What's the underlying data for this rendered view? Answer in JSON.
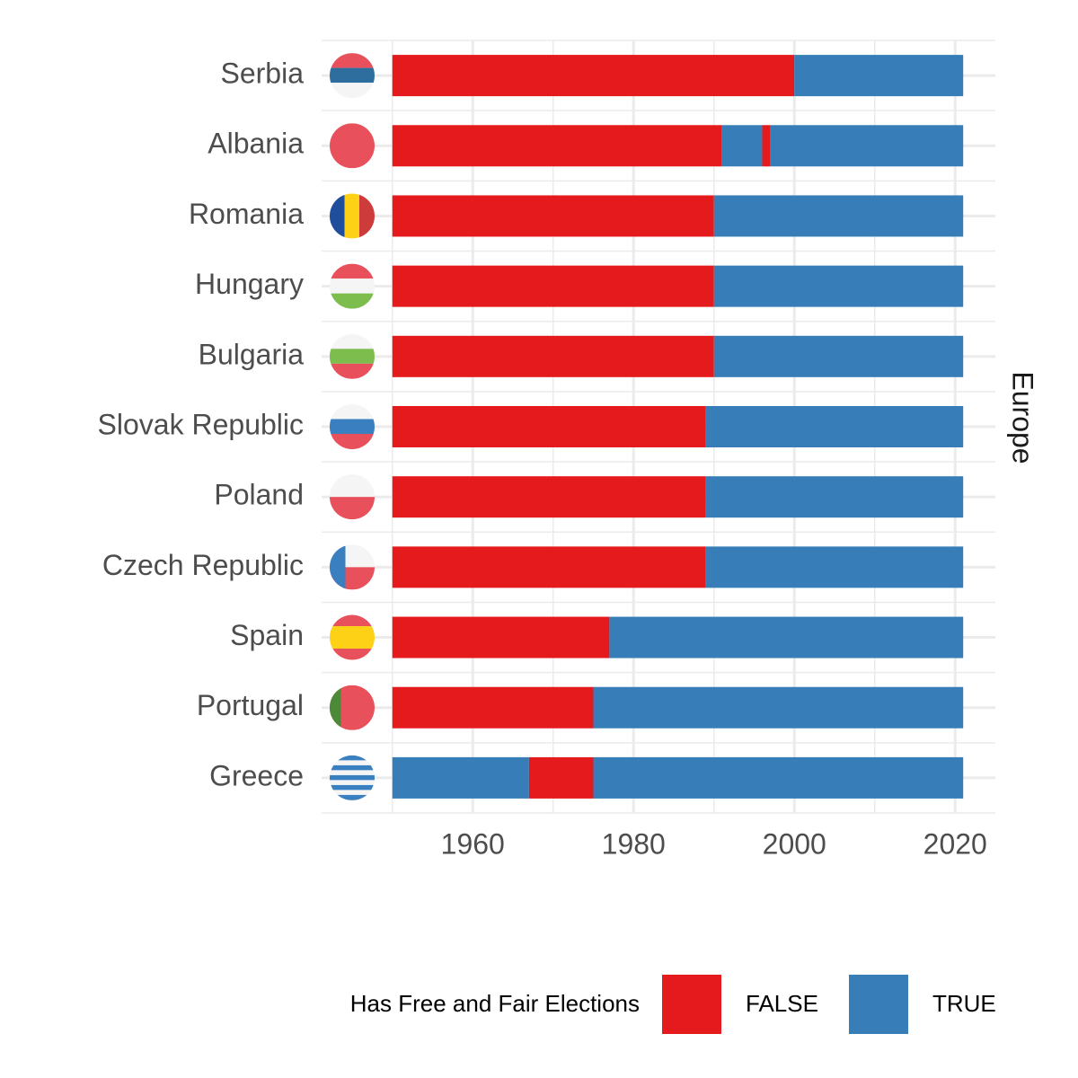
{
  "chart_data": {
    "type": "timeline",
    "facet_label": "Europe",
    "xlim": [
      1941.2,
      2025
    ],
    "xticks": [
      1960,
      1980,
      2000,
      2020
    ],
    "xminor": [
      1950,
      1970,
      1990,
      2010
    ],
    "grid": true,
    "legend": {
      "title": "Has Free and Fair Elections",
      "position": "bottom",
      "series": [
        {
          "name": "FALSE",
          "color": "#e41a1c"
        },
        {
          "name": "TRUE",
          "color": "#377eb8"
        }
      ]
    },
    "bars": [
      {
        "category": "Serbia",
        "segments": [
          {
            "start": 1950,
            "end": 2000,
            "state": "FALSE"
          },
          {
            "start": 2000,
            "end": 2021,
            "state": "TRUE"
          }
        ]
      },
      {
        "category": "Albania",
        "segments": [
          {
            "start": 1950,
            "end": 1991,
            "state": "FALSE"
          },
          {
            "start": 1991,
            "end": 1996,
            "state": "TRUE"
          },
          {
            "start": 1996,
            "end": 1997,
            "state": "FALSE"
          },
          {
            "start": 1997,
            "end": 2021,
            "state": "TRUE"
          }
        ]
      },
      {
        "category": "Romania",
        "segments": [
          {
            "start": 1950,
            "end": 1990,
            "state": "FALSE"
          },
          {
            "start": 1990,
            "end": 2021,
            "state": "TRUE"
          }
        ]
      },
      {
        "category": "Hungary",
        "segments": [
          {
            "start": 1950,
            "end": 1990,
            "state": "FALSE"
          },
          {
            "start": 1990,
            "end": 2021,
            "state": "TRUE"
          }
        ]
      },
      {
        "category": "Bulgaria",
        "segments": [
          {
            "start": 1950,
            "end": 1990,
            "state": "FALSE"
          },
          {
            "start": 1990,
            "end": 2021,
            "state": "TRUE"
          }
        ]
      },
      {
        "category": "Slovak Republic",
        "segments": [
          {
            "start": 1950,
            "end": 1989,
            "state": "FALSE"
          },
          {
            "start": 1989,
            "end": 2021,
            "state": "TRUE"
          }
        ]
      },
      {
        "category": "Poland",
        "segments": [
          {
            "start": 1950,
            "end": 1989,
            "state": "FALSE"
          },
          {
            "start": 1989,
            "end": 2021,
            "state": "TRUE"
          }
        ]
      },
      {
        "category": "Czech Republic",
        "segments": [
          {
            "start": 1950,
            "end": 1989,
            "state": "FALSE"
          },
          {
            "start": 1989,
            "end": 2021,
            "state": "TRUE"
          }
        ]
      },
      {
        "category": "Spain",
        "segments": [
          {
            "start": 1950,
            "end": 1977,
            "state": "FALSE"
          },
          {
            "start": 1977,
            "end": 2021,
            "state": "TRUE"
          }
        ]
      },
      {
        "category": "Portugal",
        "segments": [
          {
            "start": 1950,
            "end": 1975,
            "state": "FALSE"
          },
          {
            "start": 1975,
            "end": 2021,
            "state": "TRUE"
          }
        ]
      },
      {
        "category": "Greece",
        "segments": [
          {
            "start": 1950,
            "end": 1967,
            "state": "TRUE"
          },
          {
            "start": 1967,
            "end": 1975,
            "state": "FALSE"
          },
          {
            "start": 1975,
            "end": 2021,
            "state": "TRUE"
          }
        ]
      }
    ]
  }
}
